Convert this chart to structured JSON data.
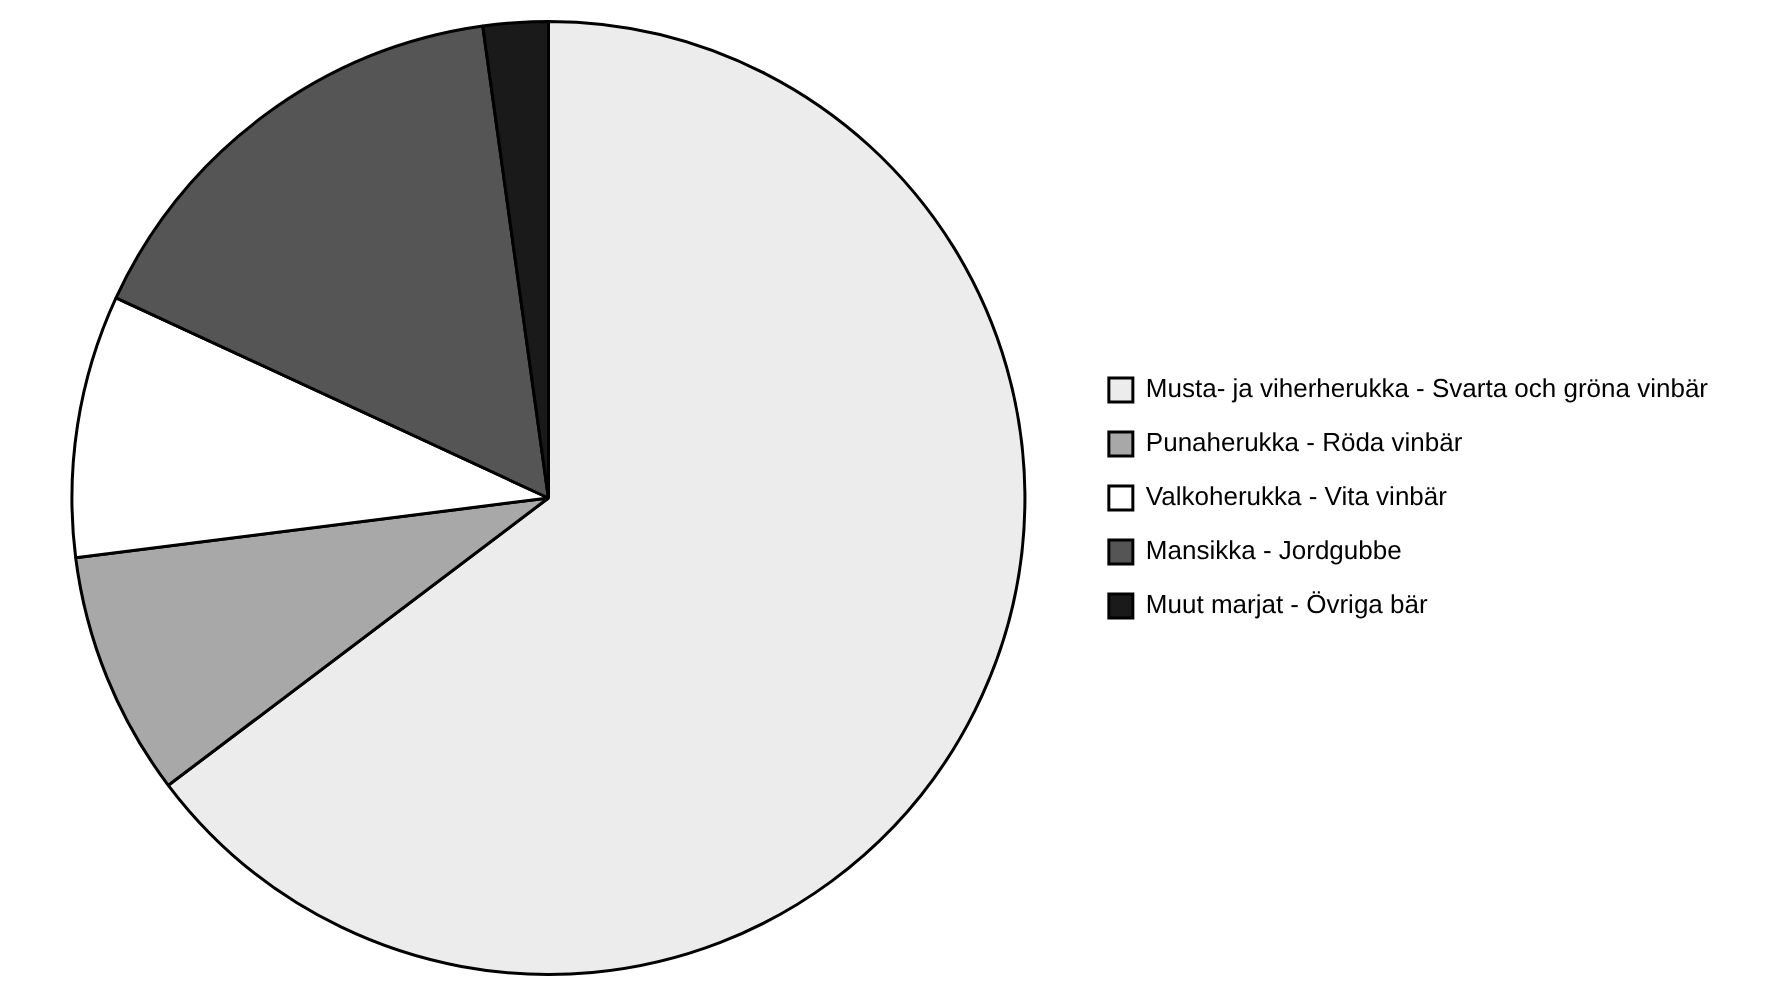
{
  "chart_data": {
    "type": "pie",
    "categories": [
      "Musta- ja viherherukka - Svarta och gröna vinbär",
      "Punaherukka - Röda vinbär",
      "Valkoherukka - Vita vinbär",
      "Mansikka - Jordgubbe",
      "Muut marjat - Övriga bär"
    ],
    "values": [
      64.7,
      8.3,
      8.9,
      15.9,
      2.2
    ],
    "colors": [
      "#ececec",
      "#a8a8a8",
      "#ffffff",
      "#555555",
      "#1a1a1a"
    ],
    "legend": "right"
  }
}
